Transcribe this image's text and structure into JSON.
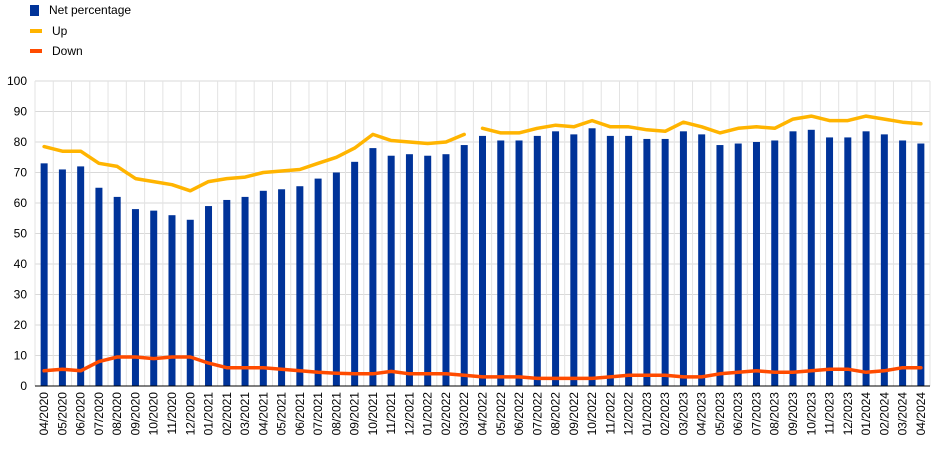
{
  "legend": [
    {
      "label": "Net percentage",
      "color": "#003399",
      "shape": "square"
    },
    {
      "label": "Up",
      "color": "#FFB400",
      "shape": "line"
    },
    {
      "label": "Down",
      "color": "#FF4B00",
      "shape": "line"
    }
  ],
  "chart_data": {
    "type": "bar",
    "categories": [
      "04/2020",
      "05/2020",
      "06/2020",
      "07/2020",
      "08/2020",
      "09/2020",
      "10/2020",
      "11/2020",
      "12/2020",
      "01/2021",
      "02/2021",
      "03/2021",
      "04/2021",
      "05/2021",
      "06/2021",
      "07/2021",
      "08/2021",
      "09/2021",
      "10/2021",
      "11/2021",
      "12/2021",
      "01/2022",
      "02/2022",
      "03/2022",
      "04/2022",
      "05/2022",
      "06/2022",
      "07/2022",
      "08/2022",
      "09/2022",
      "10/2022",
      "11/2022",
      "12/2022",
      "01/2023",
      "02/2023",
      "03/2023",
      "04/2023",
      "05/2023",
      "06/2023",
      "07/2023",
      "08/2023",
      "09/2023",
      "10/2023",
      "11/2023",
      "12/2023",
      "01/2024",
      "02/2024",
      "03/2024",
      "04/2024"
    ],
    "series": [
      {
        "name": "Net percentage",
        "type": "bar",
        "color": "#003399",
        "values": [
          73,
          71,
          72,
          65,
          62,
          58,
          57.5,
          56,
          54.5,
          59,
          61,
          62,
          64,
          64.5,
          65.5,
          68,
          70,
          73.5,
          78,
          75.5,
          76,
          75.5,
          76,
          79,
          82,
          80.5,
          80.5,
          82,
          83.5,
          82.5,
          84.5,
          82,
          82,
          81,
          81,
          83.5,
          82.5,
          79,
          79.5,
          80,
          80.5,
          83.5,
          84,
          81.5,
          81.5,
          83.5,
          82.5,
          80.5,
          79.5
        ]
      },
      {
        "name": "Up",
        "type": "line",
        "color": "#FFB400",
        "segment_break_after": "03/2022",
        "values": [
          78.5,
          77,
          77,
          73,
          72,
          68,
          67,
          66,
          64,
          67,
          68,
          68.5,
          70,
          70.5,
          71,
          73,
          75,
          78,
          82.5,
          80.5,
          80,
          79.5,
          80,
          82.5,
          84.5,
          83,
          83,
          84.5,
          85.5,
          85,
          87,
          85,
          85,
          84,
          83.5,
          86.5,
          85,
          83,
          84.5,
          85,
          84.5,
          87.5,
          88.5,
          87,
          87,
          88.5,
          87.5,
          86.5,
          86
        ]
      },
      {
        "name": "Down",
        "type": "line",
        "color": "#FF4B00",
        "values": [
          5,
          5.5,
          5,
          8,
          9.5,
          9.5,
          9,
          9.5,
          9.5,
          7.5,
          6,
          6,
          6,
          5.5,
          5,
          4.5,
          4.2,
          4,
          4,
          4.8,
          4,
          4,
          4,
          3.5,
          3,
          3,
          3,
          2.5,
          2.5,
          2.5,
          2.5,
          3,
          3.5,
          3.5,
          3.5,
          3,
          3,
          4,
          4.5,
          5,
          4.5,
          4.5,
          5,
          5.5,
          5.5,
          4.5,
          5,
          6,
          6
        ]
      }
    ],
    "ylim": [
      0,
      100
    ],
    "yticks": [
      0,
      10,
      20,
      30,
      40,
      50,
      60,
      70,
      80,
      90,
      100
    ],
    "grid": true,
    "legend_position": "top-left"
  }
}
